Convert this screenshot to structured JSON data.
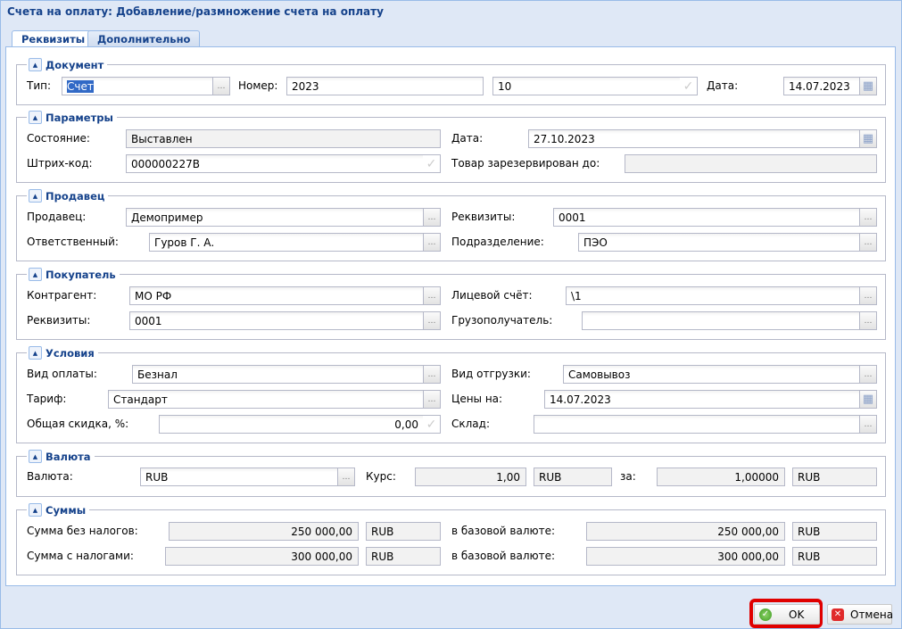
{
  "window": {
    "title": "Счета на оплату: Добавление/размножение счета на оплату"
  },
  "tabs": [
    "Реквизиты",
    "Дополнительно"
  ],
  "sections": {
    "document": {
      "title": "Документ",
      "type_label": "Тип:",
      "type_value": "Счет",
      "number_label": "Номер:",
      "number_value": "2023",
      "suffix_value": "10",
      "date_label": "Дата:",
      "date_value": "14.07.2023"
    },
    "params": {
      "title": "Параметры",
      "state_label": "Состояние:",
      "state_value": "Выставлен",
      "date_label": "Дата:",
      "date_value": "27.10.2023",
      "barcode_label": "Штрих-код:",
      "barcode_value": "000000227В",
      "reserved_label": "Товар зарезервирован до:",
      "reserved_value": ""
    },
    "seller": {
      "title": "Продавец",
      "seller_label": "Продавец:",
      "seller_value": "Демопример",
      "req_label": "Реквизиты:",
      "req_value": "0001",
      "resp_label": "Ответственный:",
      "resp_value": "Гуров Г. А.",
      "dept_label": "Подразделение:",
      "dept_value": "ПЭО"
    },
    "buyer": {
      "title": "Покупатель",
      "contr_label": "Контрагент:",
      "contr_value": "МО РФ",
      "acc_label": "Лицевой счёт:",
      "acc_value": "\\1",
      "req_label": "Реквизиты:",
      "req_value": "0001",
      "cons_label": "Грузополучатель:",
      "cons_value": ""
    },
    "terms": {
      "title": "Условия",
      "pay_label": "Вид оплаты:",
      "pay_value": "Безнал",
      "ship_label": "Вид отгрузки:",
      "ship_value": "Самовывоз",
      "tariff_label": "Тариф:",
      "tariff_value": "Стандарт",
      "prices_label": "Цены на:",
      "prices_value": "14.07.2023",
      "disc_label": "Общая скидка, %:",
      "disc_value": "0,00",
      "wh_label": "Склад:",
      "wh_value": ""
    },
    "currency": {
      "title": "Валюта",
      "cur_label": "Валюта:",
      "cur_value": "RUB",
      "rate_label": "Курс:",
      "rate_value": "1,00",
      "rate_cur": "RUB",
      "per_label": "за:",
      "per_value": "1,00000",
      "per_cur": "RUB"
    },
    "sums": {
      "title": "Суммы",
      "net_label": "Сумма без налогов:",
      "net_value": "250 000,00",
      "net_cur": "RUB",
      "base1_label": "в базовой валюте:",
      "base1_value": "250 000,00",
      "base1_cur": "RUB",
      "gross_label": "Сумма с налогами:",
      "gross_value": "300 000,00",
      "gross_cur": "RUB",
      "base2_label": "в базовой валюте:",
      "base2_value": "300 000,00",
      "base2_cur": "RUB"
    }
  },
  "footer": {
    "ok_label": "OK",
    "cancel_label": "Отмена"
  },
  "colors": {
    "title": "#15428b",
    "highlight": "#e00000"
  }
}
